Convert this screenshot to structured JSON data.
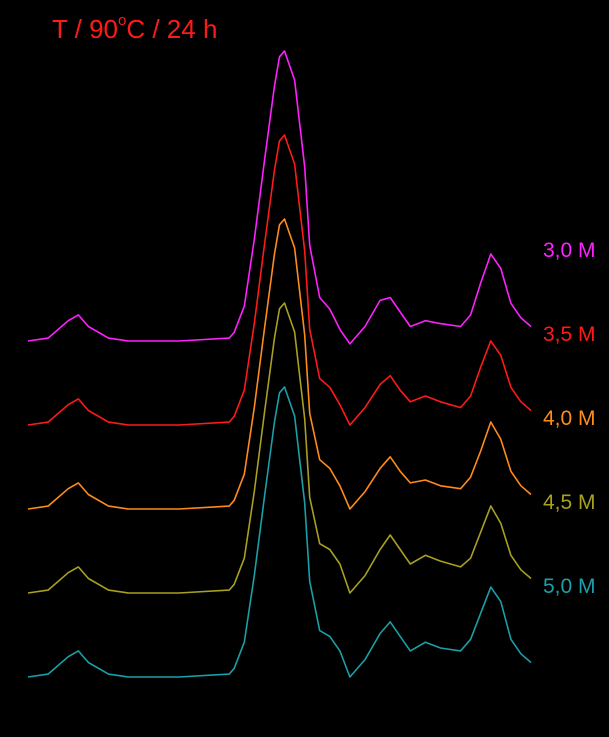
{
  "title": {
    "prefix": "T / 90",
    "degree": "o",
    "suffix": "C / 24 h",
    "color": "#ff1a1a"
  },
  "background": "#000000",
  "chart_data": {
    "type": "line",
    "title": "T / 90°C / 24 h",
    "xlabel": "",
    "ylabel": "",
    "grid": false,
    "legend": "right, inline labels next to each curve",
    "stacked_offset": true,
    "x": [
      0,
      0.04,
      0.08,
      0.1,
      0.12,
      0.16,
      0.2,
      0.3,
      0.4,
      0.41,
      0.43,
      0.45,
      0.47,
      0.49,
      0.5,
      0.51,
      0.53,
      0.55,
      0.56,
      0.58,
      0.6,
      0.62,
      0.64,
      0.67,
      0.7,
      0.72,
      0.74,
      0.76,
      0.79,
      0.82,
      0.86,
      0.88,
      0.9,
      0.92,
      0.94,
      0.96,
      0.98,
      1.0
    ],
    "series": [
      {
        "name": "3,0 M",
        "color": "#ff20ff",
        "values": [
          0.0,
          0.01,
          0.07,
          0.09,
          0.05,
          0.01,
          0.0,
          0.0,
          0.01,
          0.03,
          0.12,
          0.35,
          0.62,
          0.88,
          0.98,
          1.0,
          0.9,
          0.6,
          0.33,
          0.15,
          0.11,
          0.04,
          -0.01,
          0.05,
          0.14,
          0.15,
          0.1,
          0.05,
          0.07,
          0.06,
          0.05,
          0.09,
          0.2,
          0.3,
          0.25,
          0.13,
          0.08,
          0.05
        ]
      },
      {
        "name": "3,5 M",
        "color": "#ff1a1a",
        "values": [
          0.0,
          0.01,
          0.07,
          0.09,
          0.05,
          0.01,
          0.0,
          0.0,
          0.01,
          0.03,
          0.12,
          0.35,
          0.62,
          0.88,
          0.98,
          1.0,
          0.9,
          0.6,
          0.33,
          0.16,
          0.13,
          0.07,
          0.0,
          0.06,
          0.14,
          0.17,
          0.12,
          0.08,
          0.1,
          0.08,
          0.06,
          0.1,
          0.2,
          0.29,
          0.24,
          0.13,
          0.08,
          0.05
        ]
      },
      {
        "name": "4,0 M",
        "color": "#ff8c1a",
        "values": [
          0.0,
          0.01,
          0.07,
          0.09,
          0.05,
          0.01,
          0.0,
          0.0,
          0.01,
          0.03,
          0.12,
          0.35,
          0.62,
          0.88,
          0.98,
          1.0,
          0.9,
          0.6,
          0.33,
          0.17,
          0.14,
          0.08,
          0.0,
          0.06,
          0.14,
          0.18,
          0.13,
          0.09,
          0.1,
          0.08,
          0.07,
          0.11,
          0.2,
          0.3,
          0.24,
          0.13,
          0.08,
          0.05
        ]
      },
      {
        "name": "4,5 M",
        "color": "#a8a020",
        "values": [
          0.0,
          0.01,
          0.07,
          0.09,
          0.05,
          0.01,
          0.0,
          0.0,
          0.01,
          0.03,
          0.12,
          0.35,
          0.62,
          0.88,
          0.98,
          1.0,
          0.9,
          0.6,
          0.33,
          0.17,
          0.15,
          0.1,
          0.0,
          0.06,
          0.15,
          0.2,
          0.15,
          0.1,
          0.13,
          0.11,
          0.09,
          0.12,
          0.21,
          0.3,
          0.24,
          0.13,
          0.08,
          0.05
        ]
      },
      {
        "name": "5,0 M",
        "color": "#1aa0a8",
        "values": [
          0.0,
          0.01,
          0.07,
          0.09,
          0.05,
          0.01,
          0.0,
          0.0,
          0.01,
          0.03,
          0.12,
          0.35,
          0.62,
          0.88,
          0.98,
          1.0,
          0.9,
          0.6,
          0.33,
          0.16,
          0.14,
          0.09,
          0.0,
          0.06,
          0.15,
          0.19,
          0.14,
          0.09,
          0.12,
          0.1,
          0.09,
          0.13,
          0.22,
          0.31,
          0.26,
          0.13,
          0.08,
          0.05
        ]
      }
    ]
  }
}
